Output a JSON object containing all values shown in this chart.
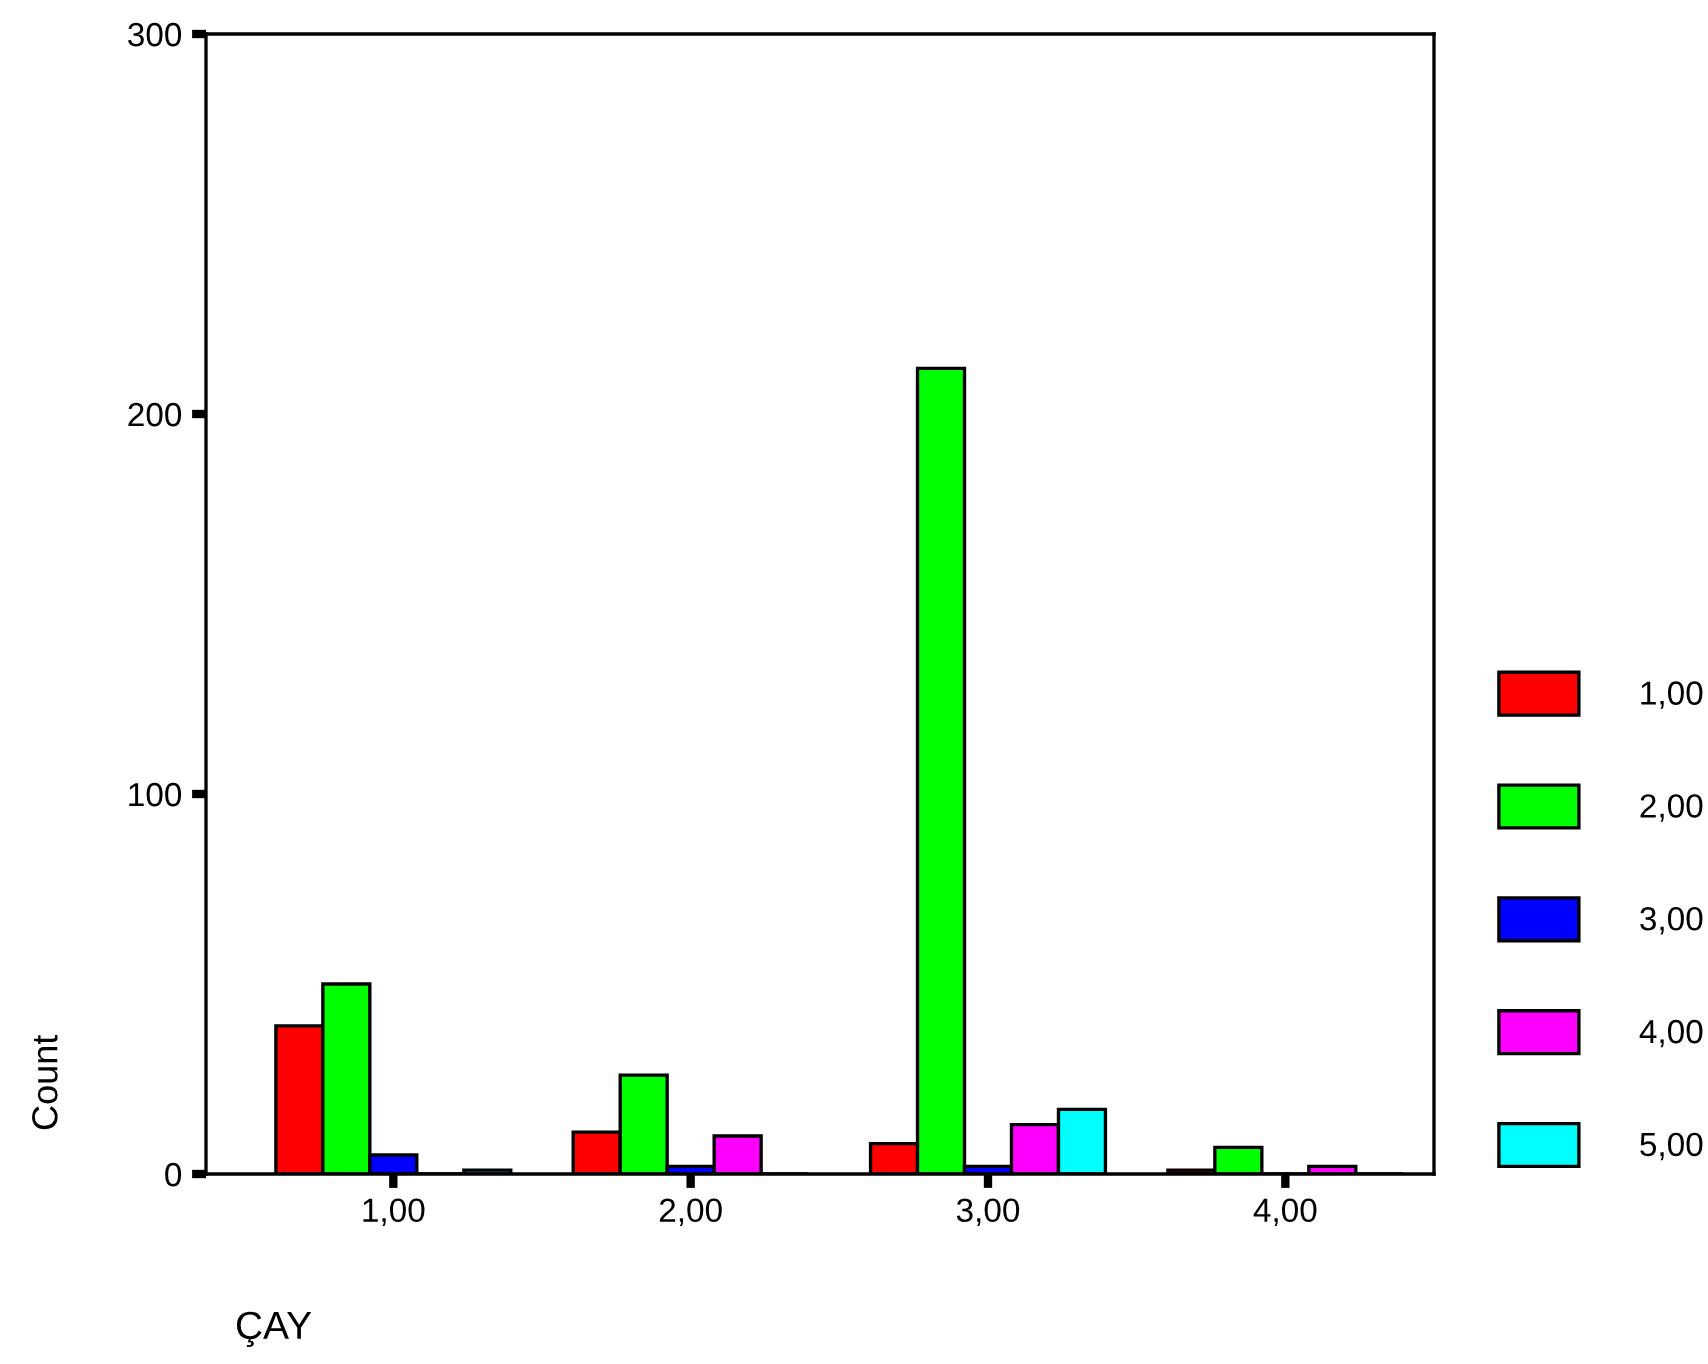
{
  "chart_data": {
    "type": "bar",
    "xlabel": "ÇAY",
    "ylabel": "Count",
    "categories": [
      "1,00",
      "2,00",
      "3,00",
      "4,00"
    ],
    "series": [
      {
        "name": "1,00",
        "color": "#ff0000",
        "values": [
          39,
          11,
          8,
          1
        ]
      },
      {
        "name": "2,00",
        "color": "#00ff00",
        "values": [
          50,
          26,
          212,
          7
        ]
      },
      {
        "name": "3,00",
        "color": "#0000ff",
        "values": [
          5,
          2,
          2,
          0
        ]
      },
      {
        "name": "4,00",
        "color": "#ff00ff",
        "values": [
          0,
          10,
          13,
          2
        ]
      },
      {
        "name": "5,00",
        "color": "#00ffff",
        "values": [
          1,
          0,
          17,
          0
        ]
      }
    ],
    "ylim": [
      0,
      300
    ],
    "yticks": [
      0,
      100,
      200,
      300
    ],
    "grid": false,
    "legend": "right"
  }
}
